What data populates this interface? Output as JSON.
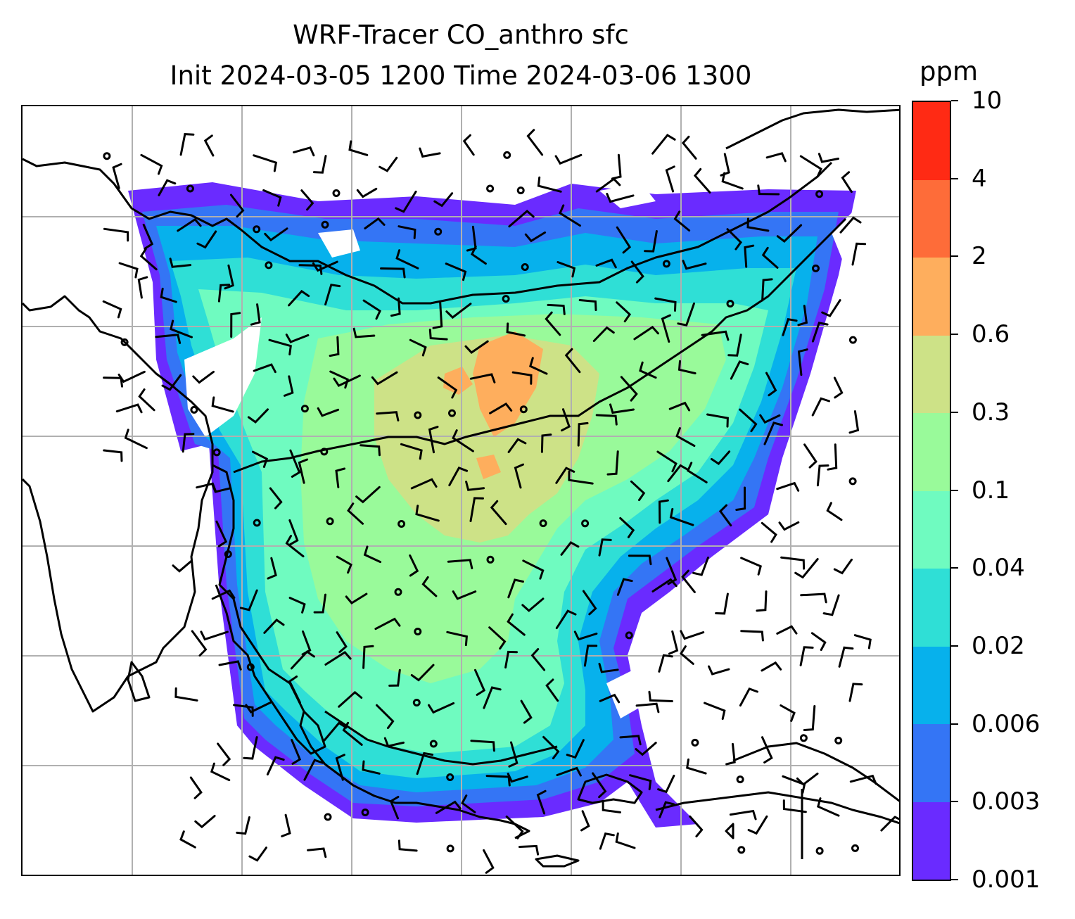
{
  "title": {
    "line1": "WRF-Tracer CO_anthro sfc",
    "line2": "Init 2024-03-05 1200 Time 2024-03-06 1300"
  },
  "colorbar": {
    "unit": "ppm",
    "levels": [
      "0.001",
      "0.003",
      "0.006",
      "0.02",
      "0.04",
      "0.1",
      "0.3",
      "0.6",
      "2",
      "4",
      "10"
    ],
    "colors": [
      "#6a2bff",
      "#3475f5",
      "#07b1ec",
      "#2fdfd6",
      "#6ffbc0",
      "#99fa9a",
      "#cde287",
      "#feae5d",
      "#fe6c39",
      "#ff2a14"
    ]
  },
  "map": {
    "projection_note": "",
    "gridlines": true,
    "field": "CO_anthro",
    "wind_barbs": true
  }
}
